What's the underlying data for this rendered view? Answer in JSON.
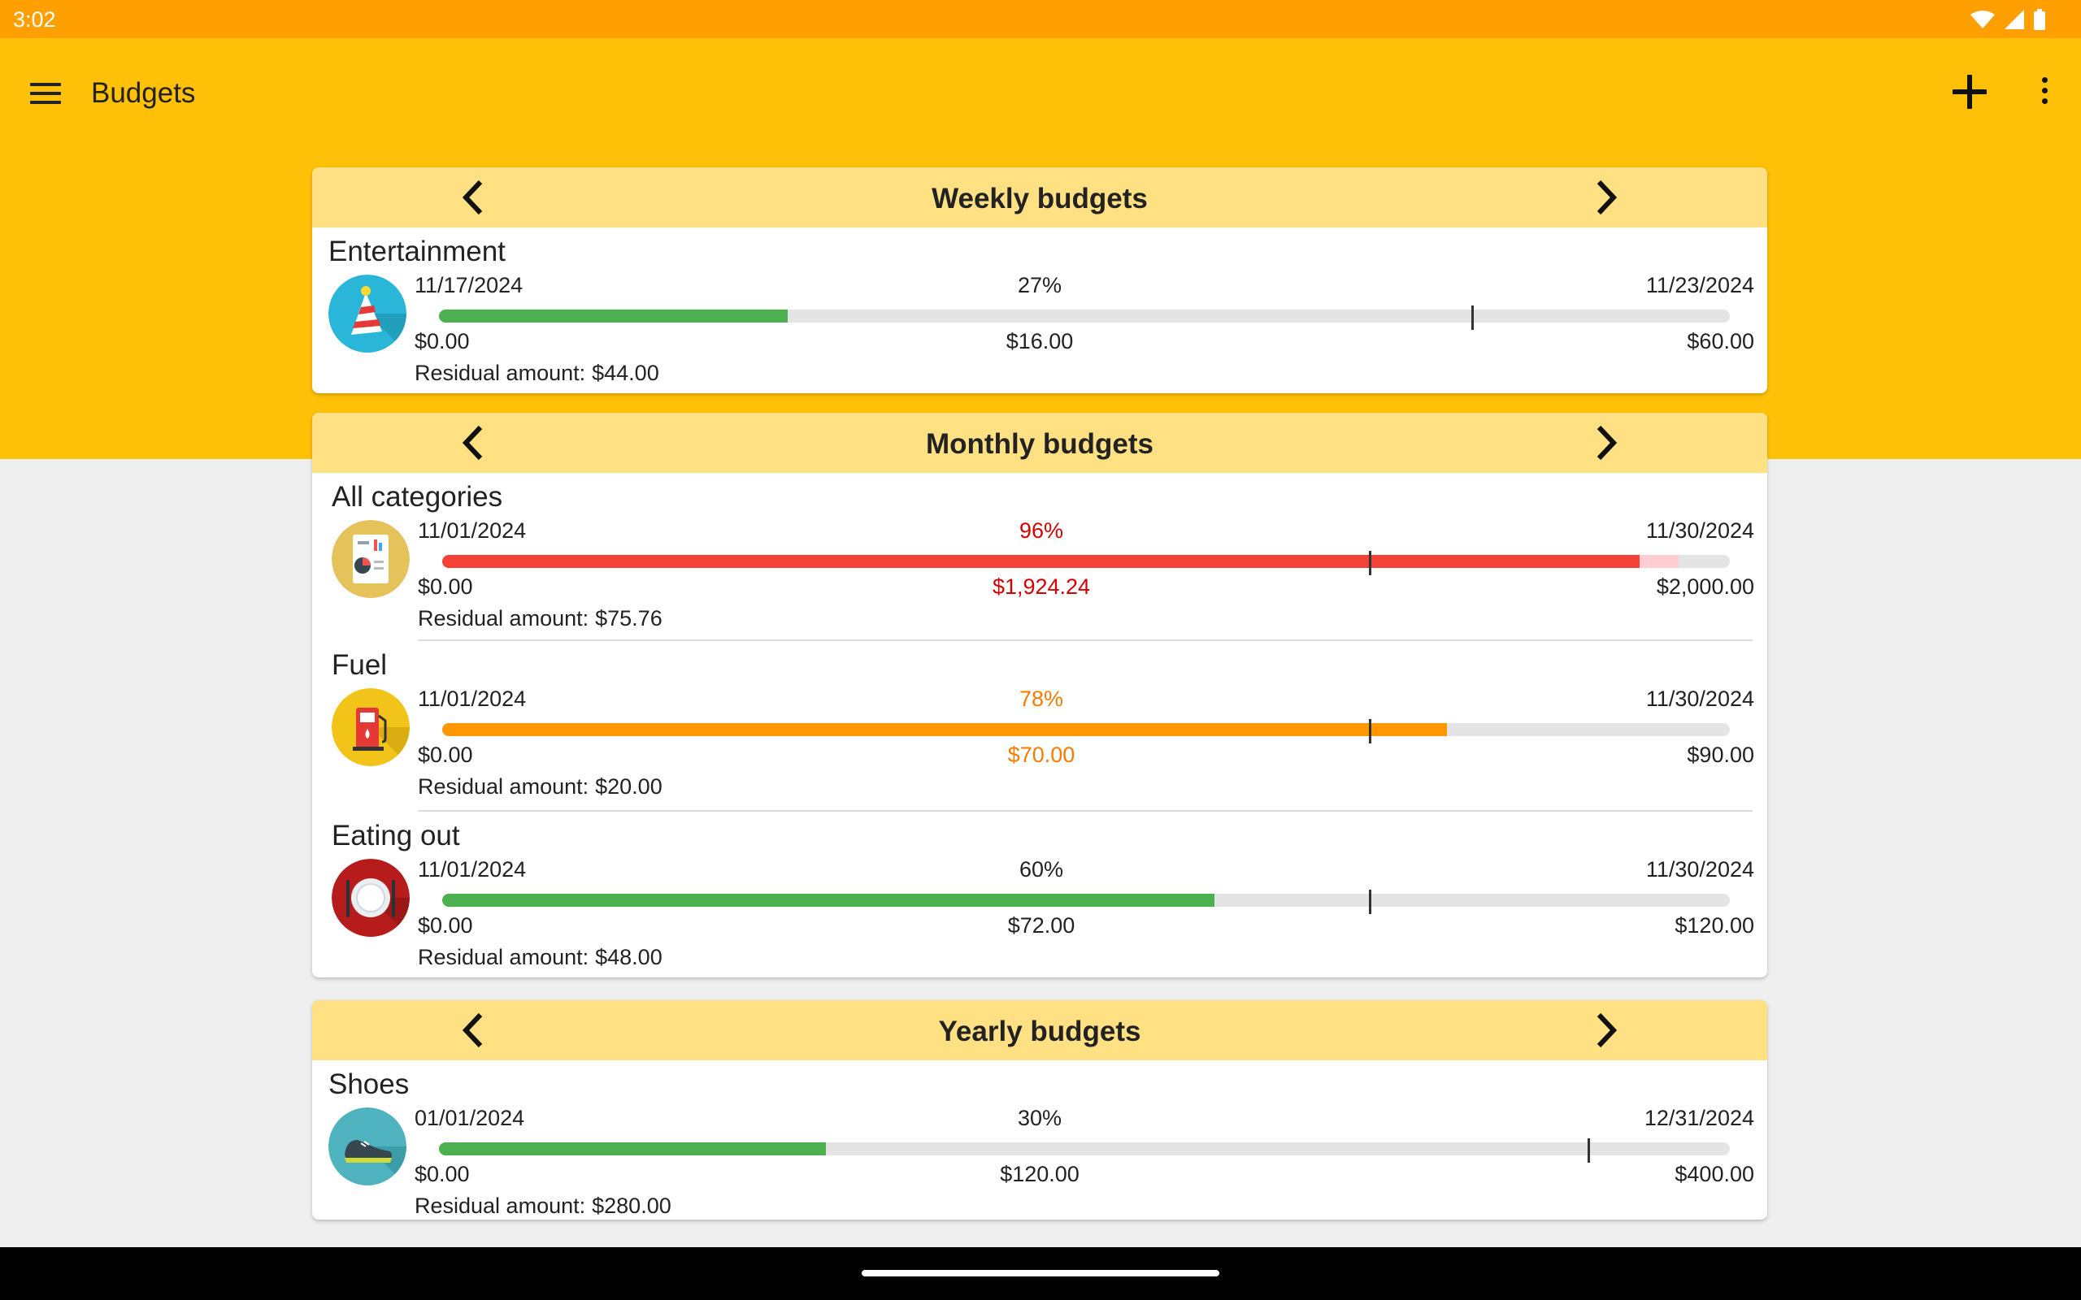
{
  "status_bar": {
    "time": "3:02"
  },
  "app_bar": {
    "title": "Budgets"
  },
  "colors": {
    "primary": "#ffc107",
    "status": "#ffa000",
    "header": "#ffe082",
    "ok": "#4caf50",
    "warning": "#ff9800",
    "danger": "#f44336"
  },
  "sections": [
    {
      "title": "Weekly budgets",
      "budgets": [
        {
          "name": "Entertainment",
          "icon": "party-hat-icon",
          "start": "11/17/2024",
          "end": "11/23/2024",
          "percent": "27%",
          "min": "$0.00",
          "spent": "$16.00",
          "max": "$60.00",
          "residual_label": "Residual amount:",
          "residual": "$44.00",
          "status": "ok",
          "fill_fraction": 0.27,
          "over_fraction": 0,
          "tick_fraction": 0.8
        }
      ]
    },
    {
      "title": "Monthly budgets",
      "budgets": [
        {
          "name": "All categories",
          "icon": "report-icon",
          "start": "11/01/2024",
          "end": "11/30/2024",
          "percent": "96%",
          "min": "$0.00",
          "spent": "$1,924.24",
          "max": "$2,000.00",
          "residual_label": "Residual amount:",
          "residual": "$75.76",
          "status": "danger",
          "fill_fraction": 0.93,
          "over_fraction": 0.96,
          "tick_fraction": 0.72
        },
        {
          "name": "Fuel",
          "icon": "fuel-pump-icon",
          "start": "11/01/2024",
          "end": "11/30/2024",
          "percent": "78%",
          "min": "$0.00",
          "spent": "$70.00",
          "max": "$90.00",
          "residual_label": "Residual amount:",
          "residual": "$20.00",
          "status": "warning",
          "fill_fraction": 0.78,
          "over_fraction": 0,
          "tick_fraction": 0.72
        },
        {
          "name": "Eating out",
          "icon": "plate-cutlery-icon",
          "start": "11/01/2024",
          "end": "11/30/2024",
          "percent": "60%",
          "min": "$0.00",
          "spent": "$72.00",
          "max": "$120.00",
          "residual_label": "Residual amount:",
          "residual": "$48.00",
          "status": "ok",
          "fill_fraction": 0.6,
          "over_fraction": 0,
          "tick_fraction": 0.72
        }
      ]
    },
    {
      "title": "Yearly budgets",
      "budgets": [
        {
          "name": "Shoes",
          "icon": "sneaker-icon",
          "start": "01/01/2024",
          "end": "12/31/2024",
          "percent": "30%",
          "min": "$0.00",
          "spent": "$120.00",
          "max": "$400.00",
          "residual_label": "Residual amount:",
          "residual": "$280.00",
          "status": "ok",
          "fill_fraction": 0.3,
          "over_fraction": 0,
          "tick_fraction": 0.89
        }
      ]
    }
  ]
}
